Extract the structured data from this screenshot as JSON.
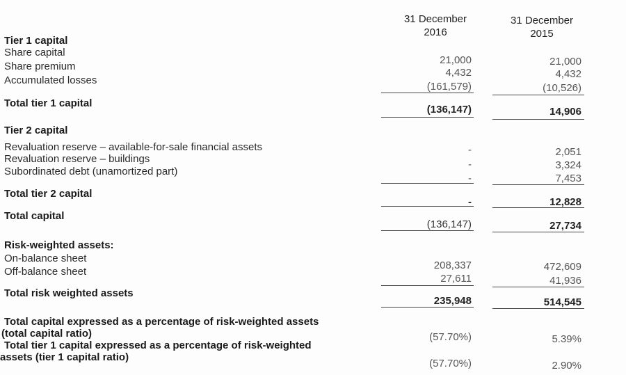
{
  "header": {
    "col1": "31 December\n2016",
    "col1_line1": "31 December",
    "col1_line2": "2016",
    "col2_line1": "31 December",
    "col2_line2": "2015"
  },
  "tier1": {
    "title": "Tier 1 capital",
    "rows": [
      {
        "label": "Share capital",
        "v2016": "21,000",
        "v2015": "21,000"
      },
      {
        "label": "Share premium",
        "v2016": "4,432",
        "v2015": "4,432"
      },
      {
        "label": "Accumulated losses",
        "v2016": "(161,579)",
        "v2015": "(10,526)"
      }
    ],
    "total": {
      "label": "Total tier 1 capital",
      "v2016": "(136,147)",
      "v2015": "14,906"
    }
  },
  "tier2": {
    "title": "Tier 2 capital",
    "rows": [
      {
        "label": "Revaluation reserve – available-for-sale financial assets",
        "v2016": "-",
        "v2015": "2,051"
      },
      {
        "label": "Revaluation reserve – buildings",
        "v2016": "-",
        "v2015": "3,324"
      },
      {
        "label": "Subordinated debt (unamortized part)",
        "v2016": "-",
        "v2015": "7,453"
      }
    ],
    "total": {
      "label": "Total tier 2 capital",
      "v2016": "-",
      "v2015": "12,828"
    }
  },
  "total_capital": {
    "label": "Total capital",
    "v2016": "(136,147)",
    "v2015": "27,734"
  },
  "rwa": {
    "title": "Risk-weighted assets:",
    "rows": [
      {
        "label": "On-balance sheet",
        "v2016": "208,337",
        "v2015": "472,609"
      },
      {
        "label": "Off-balance sheet",
        "v2016": "27,611",
        "v2015": "41,936"
      }
    ],
    "total": {
      "label": "Total risk weighted assets",
      "v2016": "235,948",
      "v2015": "514,545"
    }
  },
  "ratios": [
    {
      "line1": "Total capital expressed as a percentage of risk-weighted assets",
      "line2": "(total capital ratio)",
      "v2016": "(57.70%)",
      "v2015": "5.39%"
    },
    {
      "line1": "Total tier 1 capital expressed as a percentage of risk-weighted",
      "line2": "assets (tier 1 capital ratio)",
      "v2016": "(57.70%)",
      "v2015": "2.90%"
    }
  ]
}
